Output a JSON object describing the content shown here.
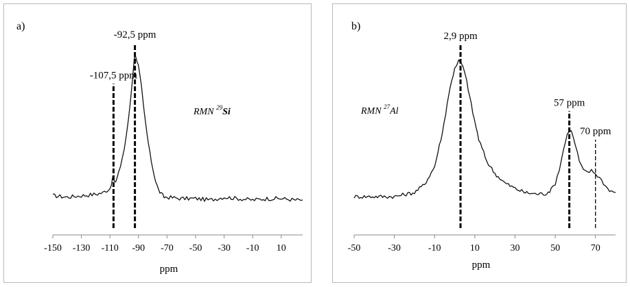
{
  "chart_data": [
    {
      "type": "line",
      "panel_label": "a)",
      "xlabel": "ppm",
      "xlim": [
        -150,
        25
      ],
      "xticks": [
        -150,
        -130,
        -110,
        -90,
        -70,
        -50,
        -30,
        -10,
        10
      ],
      "xtick_labels": [
        "-150",
        "-130",
        "-110",
        "-90",
        "-70",
        "-50",
        "-30",
        "-10",
        "10"
      ],
      "annotation": {
        "prefix": "RMN ",
        "sup": "29",
        "suffix": "Si"
      },
      "peaks": [
        {
          "x": -107.5,
          "label": "-107,5 ppm",
          "style": "dashed-bold",
          "y_top": 0.8
        },
        {
          "x": -92.5,
          "label": "-92,5 ppm",
          "style": "dashed-bold",
          "y_top": 1.08
        }
      ],
      "series": [
        {
          "x": [
            -150,
            -140,
            -130,
            -120,
            -115,
            -110,
            -108,
            -106,
            -104,
            -100,
            -97,
            -95,
            -93,
            -92,
            -90,
            -88,
            -86,
            -84,
            -82,
            -80,
            -78,
            -76,
            -74,
            -72,
            -70,
            -60,
            -50,
            -40,
            -30,
            -20,
            -10,
            0,
            10,
            20,
            25
          ],
          "y": [
            0.03,
            0.02,
            0.03,
            0.04,
            0.05,
            0.08,
            0.15,
            0.12,
            0.18,
            0.35,
            0.55,
            0.75,
            0.98,
            1.0,
            0.92,
            0.78,
            0.6,
            0.45,
            0.32,
            0.22,
            0.13,
            0.07,
            0.04,
            0.02,
            0.02,
            0.01,
            0.01,
            0.0,
            0.02,
            0.01,
            0.0,
            0.01,
            0.01,
            0.0,
            0.0
          ]
        }
      ]
    },
    {
      "type": "line",
      "panel_label": "b)",
      "xlabel": "ppm",
      "xlim": [
        -50,
        80
      ],
      "xticks": [
        -50,
        -30,
        -10,
        10,
        30,
        50,
        70
      ],
      "xtick_labels": [
        "-50",
        "-30",
        "-10",
        "10",
        "30",
        "50",
        "70"
      ],
      "annotation": {
        "prefix": "RMN ",
        "sup": "27",
        "suffix": "Al"
      },
      "peaks": [
        {
          "x": 2.9,
          "label": "2,9 ppm",
          "style": "dashed-bold",
          "y_top": 1.12
        },
        {
          "x": 57,
          "label": "57 ppm",
          "style": "dashed-bold",
          "y_top": 0.63
        },
        {
          "x": 70,
          "label": "70 ppm",
          "style": "dashed-thin",
          "y_top": 0.42
        }
      ],
      "series": [
        {
          "x": [
            -50,
            -40,
            -30,
            -20,
            -15,
            -10,
            -6,
            -3,
            0,
            2,
            3,
            4,
            6,
            9,
            12,
            16,
            20,
            25,
            30,
            35,
            40,
            45,
            48,
            50,
            52,
            54,
            56,
            57,
            58,
            60,
            62,
            64,
            66,
            68,
            70,
            72,
            74,
            76,
            78,
            80
          ],
          "y": [
            0.0,
            0.0,
            0.0,
            0.03,
            0.09,
            0.22,
            0.48,
            0.75,
            0.95,
            1.0,
            0.99,
            0.96,
            0.85,
            0.62,
            0.42,
            0.26,
            0.17,
            0.1,
            0.06,
            0.03,
            0.02,
            0.02,
            0.05,
            0.1,
            0.2,
            0.34,
            0.46,
            0.5,
            0.48,
            0.38,
            0.26,
            0.19,
            0.18,
            0.19,
            0.17,
            0.14,
            0.1,
            0.06,
            0.04,
            0.03
          ]
        }
      ]
    }
  ]
}
